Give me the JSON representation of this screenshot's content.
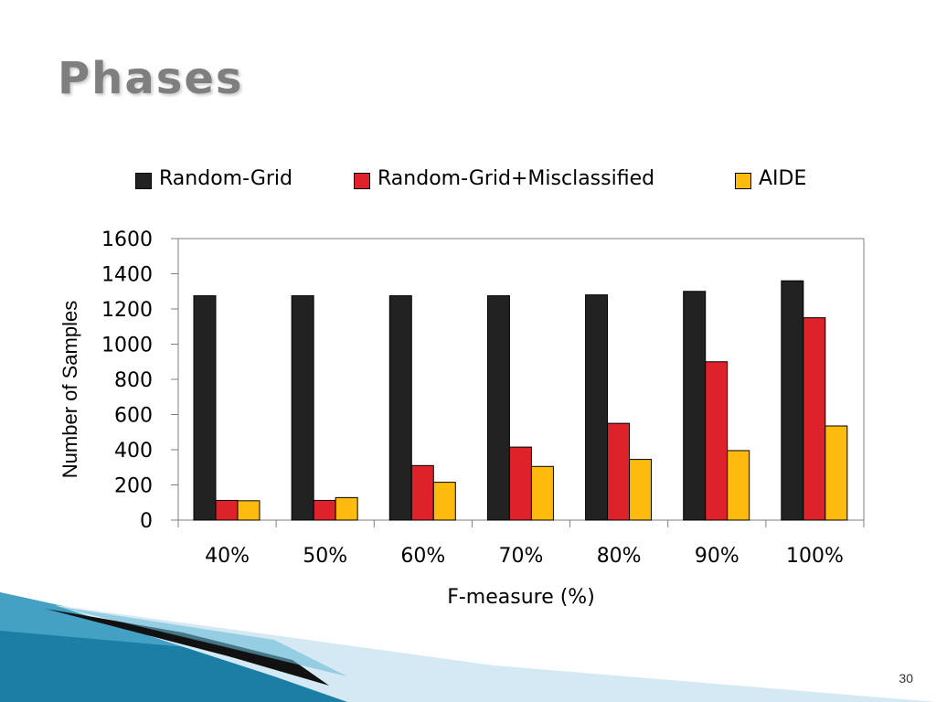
{
  "slide": {
    "title": "Phases",
    "page_number": "30"
  },
  "chart_data": {
    "type": "bar",
    "categories": [
      "40%",
      "50%",
      "60%",
      "70%",
      "80%",
      "90%",
      "100%"
    ],
    "series": [
      {
        "name": "Random-Grid",
        "color": "#222222",
        "values": [
          1275,
          1275,
          1275,
          1275,
          1280,
          1300,
          1360
        ]
      },
      {
        "name": "Random-Grid+Misclassified",
        "color": "#dd2229",
        "values": [
          112,
          112,
          310,
          415,
          550,
          900,
          1150
        ]
      },
      {
        "name": "AIDE",
        "color": "#fdbb0e",
        "values": [
          110,
          128,
          215,
          305,
          345,
          395,
          535
        ]
      }
    ],
    "xlabel": "F-measure (%)",
    "ylabel": "Number of Samples",
    "ylim": [
      0,
      1600
    ],
    "yticks": [
      "0",
      "200",
      "400",
      "600",
      "800",
      "1000",
      "1200",
      "1400",
      "1600"
    ],
    "grid": false,
    "legend_position": "top"
  }
}
